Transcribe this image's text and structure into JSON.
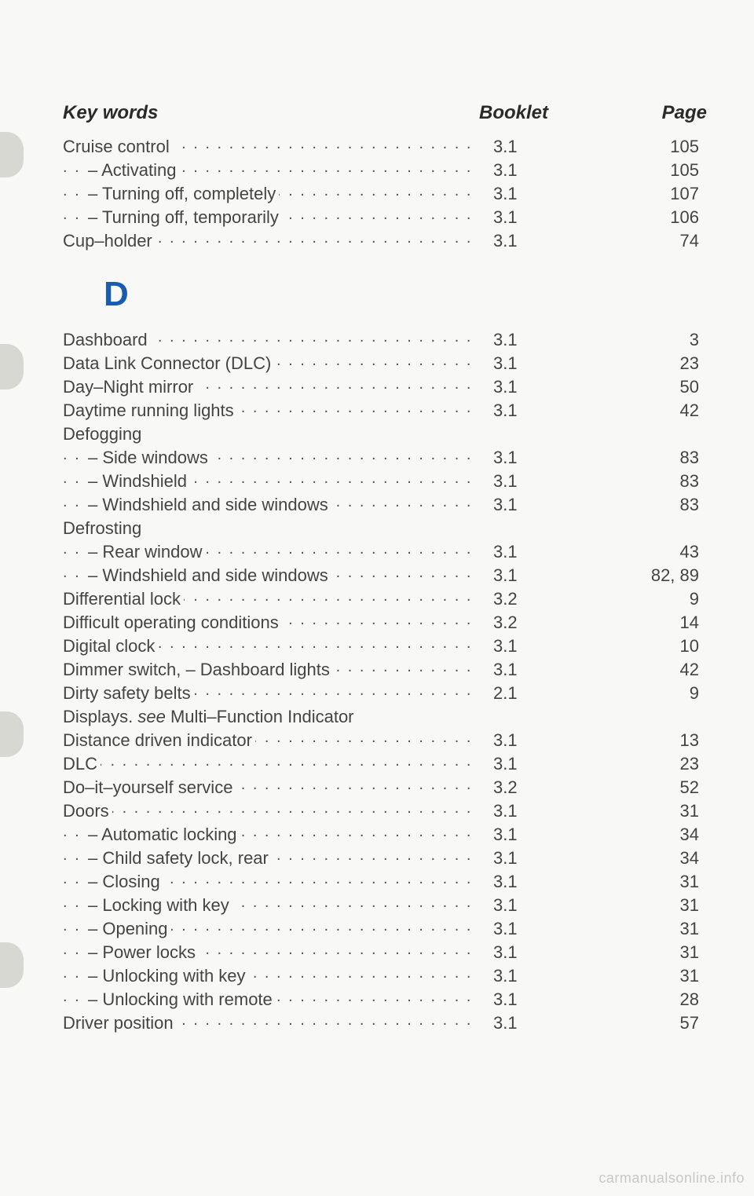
{
  "header": {
    "keywords": "Key words",
    "booklet": "Booklet",
    "page": "Page"
  },
  "sections": [
    {
      "letter": null,
      "rows": [
        {
          "label": "Cruise control",
          "indent": false,
          "booklet": "3.1",
          "page": "105",
          "dots": true
        },
        {
          "label": "– Activating",
          "indent": true,
          "booklet": "3.1",
          "page": "105",
          "dots": true
        },
        {
          "label": "– Turning off, completely",
          "indent": true,
          "booklet": "3.1",
          "page": "107",
          "dots": true
        },
        {
          "label": "– Turning off, temporarily",
          "indent": true,
          "booklet": "3.1",
          "page": "106",
          "dots": true
        },
        {
          "label": "Cup–holder",
          "indent": false,
          "booklet": "3.1",
          "page": "74",
          "dots": true
        }
      ]
    },
    {
      "letter": "D",
      "rows": [
        {
          "label": "Dashboard",
          "indent": false,
          "booklet": "3.1",
          "page": "3",
          "dots": true
        },
        {
          "label": "Data Link Connector (DLC)",
          "indent": false,
          "booklet": "3.1",
          "page": "23",
          "dots": true
        },
        {
          "label": "Day–Night mirror",
          "indent": false,
          "booklet": "3.1",
          "page": "50",
          "dots": true
        },
        {
          "label": "Daytime running lights",
          "indent": false,
          "booklet": "3.1",
          "page": "42",
          "dots": true
        },
        {
          "label": "Defogging",
          "indent": false,
          "booklet": "",
          "page": "",
          "dots": false,
          "noref": true
        },
        {
          "label": "– Side windows",
          "indent": true,
          "booklet": "3.1",
          "page": "83",
          "dots": true
        },
        {
          "label": "– Windshield",
          "indent": true,
          "booklet": "3.1",
          "page": "83",
          "dots": true
        },
        {
          "label": "– Windshield and side windows",
          "indent": true,
          "booklet": "3.1",
          "page": "83",
          "dots": true
        },
        {
          "label": "Defrosting",
          "indent": false,
          "booklet": "",
          "page": "",
          "dots": false,
          "noref": true
        },
        {
          "label": "– Rear window",
          "indent": true,
          "booklet": "3.1",
          "page": "43",
          "dots": true
        },
        {
          "label": "– Windshield and side windows",
          "indent": true,
          "booklet": "3.1",
          "page": "82, 89",
          "dots": true
        },
        {
          "label": "Differential lock",
          "indent": false,
          "booklet": "3.2",
          "page": "9",
          "dots": true
        },
        {
          "label": "Difficult operating conditions",
          "indent": false,
          "booklet": "3.2",
          "page": "14",
          "dots": true
        },
        {
          "label": "Digital clock",
          "indent": false,
          "booklet": "3.1",
          "page": "10",
          "dots": true
        },
        {
          "label": "Dimmer switch, – Dashboard lights",
          "indent": false,
          "booklet": "3.1",
          "page": "42",
          "dots": true
        },
        {
          "label": "Dirty safety belts",
          "indent": false,
          "booklet": "2.1",
          "page": "9",
          "dots": true
        },
        {
          "label": "Displays. see Multi–Function Indicator",
          "indent": false,
          "booklet": "",
          "page": "",
          "dots": false,
          "noref": true,
          "html": "Displays. <i>see</i> Multi–Function Indicator"
        },
        {
          "label": "Distance driven indicator",
          "indent": false,
          "booklet": "3.1",
          "page": "13",
          "dots": true
        },
        {
          "label": "DLC",
          "indent": false,
          "booklet": "3.1",
          "page": "23",
          "dots": true
        },
        {
          "label": "Do–it–yourself service",
          "indent": false,
          "booklet": "3.2",
          "page": "52",
          "dots": true
        },
        {
          "label": "Doors",
          "indent": false,
          "booklet": "3.1",
          "page": "31",
          "dots": true
        },
        {
          "label": "– Automatic locking",
          "indent": true,
          "booklet": "3.1",
          "page": "34",
          "dots": true
        },
        {
          "label": "– Child safety lock, rear",
          "indent": true,
          "booklet": "3.1",
          "page": "34",
          "dots": true
        },
        {
          "label": "– Closing",
          "indent": true,
          "booklet": "3.1",
          "page": "31",
          "dots": true
        },
        {
          "label": "– Locking with key",
          "indent": true,
          "booklet": "3.1",
          "page": "31",
          "dots": true
        },
        {
          "label": "– Opening",
          "indent": true,
          "booklet": "3.1",
          "page": "31",
          "dots": true
        },
        {
          "label": "– Power locks",
          "indent": true,
          "booklet": "3.1",
          "page": "31",
          "dots": true
        },
        {
          "label": "– Unlocking with key",
          "indent": true,
          "booklet": "3.1",
          "page": "31",
          "dots": true
        },
        {
          "label": "– Unlocking with remote",
          "indent": true,
          "booklet": "3.1",
          "page": "28",
          "dots": true
        },
        {
          "label": "Driver position",
          "indent": false,
          "booklet": "3.1",
          "page": "57",
          "dots": true
        }
      ]
    }
  ],
  "tabs": [
    168,
    438,
    906,
    1200
  ],
  "watermark": "carmanualsonline.info",
  "dotfill": ". . . . . . . . . . . . . . . . . . . . . . . . . . . . . . . . . . . . . . . . . . . . . . . . . . . . . . . . . . . ."
}
